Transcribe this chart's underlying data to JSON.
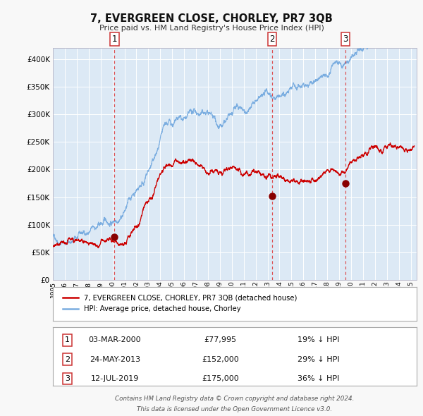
{
  "title": "7, EVERGREEN CLOSE, CHORLEY, PR7 3QB",
  "subtitle": "Price paid vs. HM Land Registry's House Price Index (HPI)",
  "bg_color": "#dce9f5",
  "red_line_label": "7, EVERGREEN CLOSE, CHORLEY, PR7 3QB (detached house)",
  "blue_line_label": "HPI: Average price, detached house, Chorley",
  "transactions": [
    {
      "num": 1,
      "date": "03-MAR-2000",
      "x": 2000.17,
      "price": 77995,
      "pct": "19%",
      "direction": "↓",
      "vline_style": "red_dashed"
    },
    {
      "num": 2,
      "date": "24-MAY-2013",
      "x": 2013.39,
      "price": 152000,
      "pct": "29%",
      "direction": "↓",
      "vline_style": "red_dashed"
    },
    {
      "num": 3,
      "date": "12-JUL-2019",
      "x": 2019.53,
      "price": 175000,
      "pct": "36%",
      "direction": "↓",
      "vline_style": "red_dashed"
    }
  ],
  "footer1": "Contains HM Land Registry data © Crown copyright and database right 2024.",
  "footer2": "This data is licensed under the Open Government Licence v3.0.",
  "ylim": [
    0,
    420000
  ],
  "xlim": [
    1995.0,
    2025.5
  ],
  "yticks": [
    0,
    50000,
    100000,
    150000,
    200000,
    250000,
    300000,
    350000,
    400000
  ],
  "xtick_years": [
    1995,
    1996,
    1997,
    1998,
    1999,
    2000,
    2001,
    2002,
    2003,
    2004,
    2005,
    2006,
    2007,
    2008,
    2009,
    2010,
    2011,
    2012,
    2013,
    2014,
    2015,
    2016,
    2017,
    2018,
    2019,
    2020,
    2021,
    2022,
    2023,
    2024,
    2025
  ],
  "red_color": "#cc0000",
  "blue_color": "#7aade0",
  "marker_color": "#880000",
  "vline_red_color": "#dd3333",
  "grid_color": "#ffffff",
  "legend_box_color": "#aaaaaa",
  "fig_bg": "#f8f8f8"
}
